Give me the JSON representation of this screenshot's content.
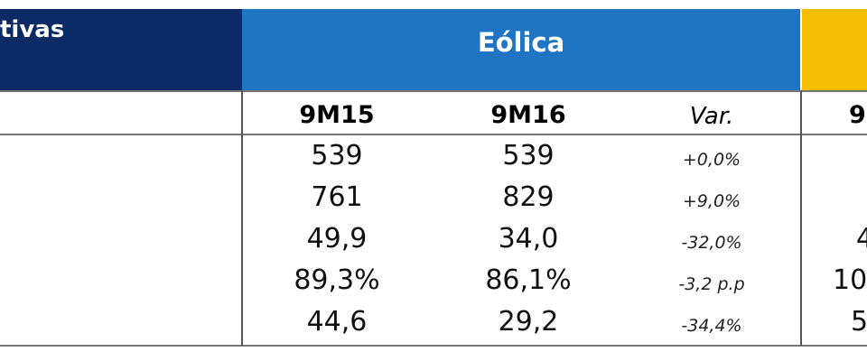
{
  "header": {
    "left_title": "tivas",
    "group_title": "Eólica"
  },
  "columns": {
    "c1": "9M15",
    "c2": "9M16",
    "var": "Var.",
    "next_partial": "9"
  },
  "rows": [
    {
      "c1": "539",
      "c2": "539",
      "var": "+0,0%",
      "next_partial": ""
    },
    {
      "c1": "761",
      "c2": "829",
      "var": "+9,0%",
      "next_partial": ""
    },
    {
      "c1": "49,9",
      "c2": "34,0",
      "var": "-32,0%",
      "next_partial": "4"
    },
    {
      "c1": "89,3%",
      "c2": "86,1%",
      "var": "-3,2 p.p",
      "next_partial": "10"
    },
    {
      "c1": "44,6",
      "c2": "29,2",
      "var": "-34,4%",
      "next_partial": "5"
    }
  ],
  "colors": {
    "navy": "#0c2b66",
    "blue": "#1f74c4",
    "yellow": "#f6be00"
  }
}
